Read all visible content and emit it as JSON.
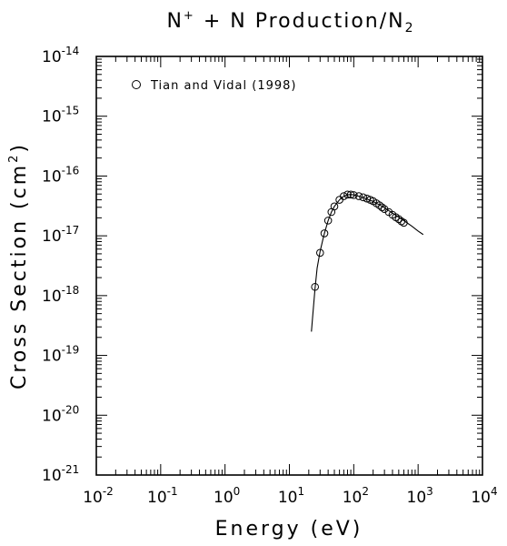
{
  "chart_data": {
    "type": "scatter",
    "title": {
      "main": "N",
      "sup": "+",
      "mid": " + N Production/N",
      "sub": "2"
    },
    "xlabel": "Energy (eV)",
    "ylabel": {
      "main": "Cross Section (cm",
      "sup": "2",
      "end": ")"
    },
    "x_scale": "log",
    "y_scale": "log",
    "xlim": [
      0.01,
      10000
    ],
    "ylim": [
      1e-21,
      1e-14
    ],
    "x_ticks": [
      {
        "base": "10",
        "exp": "-2",
        "value": 0.01
      },
      {
        "base": "10",
        "exp": "-1",
        "value": 0.1
      },
      {
        "base": "10",
        "exp": "0",
        "value": 1
      },
      {
        "base": "10",
        "exp": "1",
        "value": 10
      },
      {
        "base": "10",
        "exp": "2",
        "value": 100
      },
      {
        "base": "10",
        "exp": "3",
        "value": 1000
      },
      {
        "base": "10",
        "exp": "4",
        "value": 10000
      }
    ],
    "y_ticks": [
      {
        "base": "10",
        "exp": "-21",
        "value": 1e-21
      },
      {
        "base": "10",
        "exp": "-20",
        "value": 1e-20
      },
      {
        "base": "10",
        "exp": "-19",
        "value": 1e-19
      },
      {
        "base": "10",
        "exp": "-18",
        "value": 1e-18
      },
      {
        "base": "10",
        "exp": "-17",
        "value": 1e-17
      },
      {
        "base": "10",
        "exp": "-16",
        "value": 1e-16
      },
      {
        "base": "10",
        "exp": "-15",
        "value": 1e-15
      },
      {
        "base": "10",
        "exp": "-14",
        "value": 1e-14
      }
    ],
    "legend_position": "top-left",
    "series": [
      {
        "name": "Tian and Vidal (1998)",
        "marker": "open-circle",
        "x": [
          25,
          30,
          35,
          40,
          45,
          50,
          60,
          70,
          80,
          90,
          100,
          120,
          140,
          160,
          180,
          200,
          225,
          250,
          275,
          300,
          350,
          400,
          450,
          500,
          550,
          600
        ],
        "y": [
          1.4e-18,
          5.2e-18,
          1.1e-17,
          1.8e-17,
          2.5e-17,
          3.1e-17,
          4e-17,
          4.6e-17,
          4.9e-17,
          4.9e-17,
          4.8e-17,
          4.6e-17,
          4.4e-17,
          4.2e-17,
          4e-17,
          3.8e-17,
          3.5e-17,
          3.25e-17,
          3e-17,
          2.8e-17,
          2.5e-17,
          2.25e-17,
          2.05e-17,
          1.9e-17,
          1.75e-17,
          1.65e-17
        ]
      },
      {
        "marker": "line",
        "x": [
          22,
          23,
          25,
          27,
          30,
          33,
          35,
          40,
          45,
          50,
          60,
          70,
          80,
          90,
          100,
          120,
          150,
          200,
          250,
          300,
          400,
          500,
          600,
          800,
          1000,
          1200
        ],
        "y": [
          2.5e-19,
          4.5e-19,
          1.3e-18,
          2.9e-18,
          5.5e-18,
          8.5e-18,
          1.1e-17,
          1.8e-17,
          2.5e-17,
          3.1e-17,
          4e-17,
          4.6e-17,
          4.85e-17,
          4.9e-17,
          4.85e-17,
          4.6e-17,
          4.25e-17,
          3.75e-17,
          3.3e-17,
          2.95e-17,
          2.4e-17,
          2.05e-17,
          1.8e-17,
          1.45e-17,
          1.2e-17,
          1.05e-17
        ]
      }
    ]
  }
}
